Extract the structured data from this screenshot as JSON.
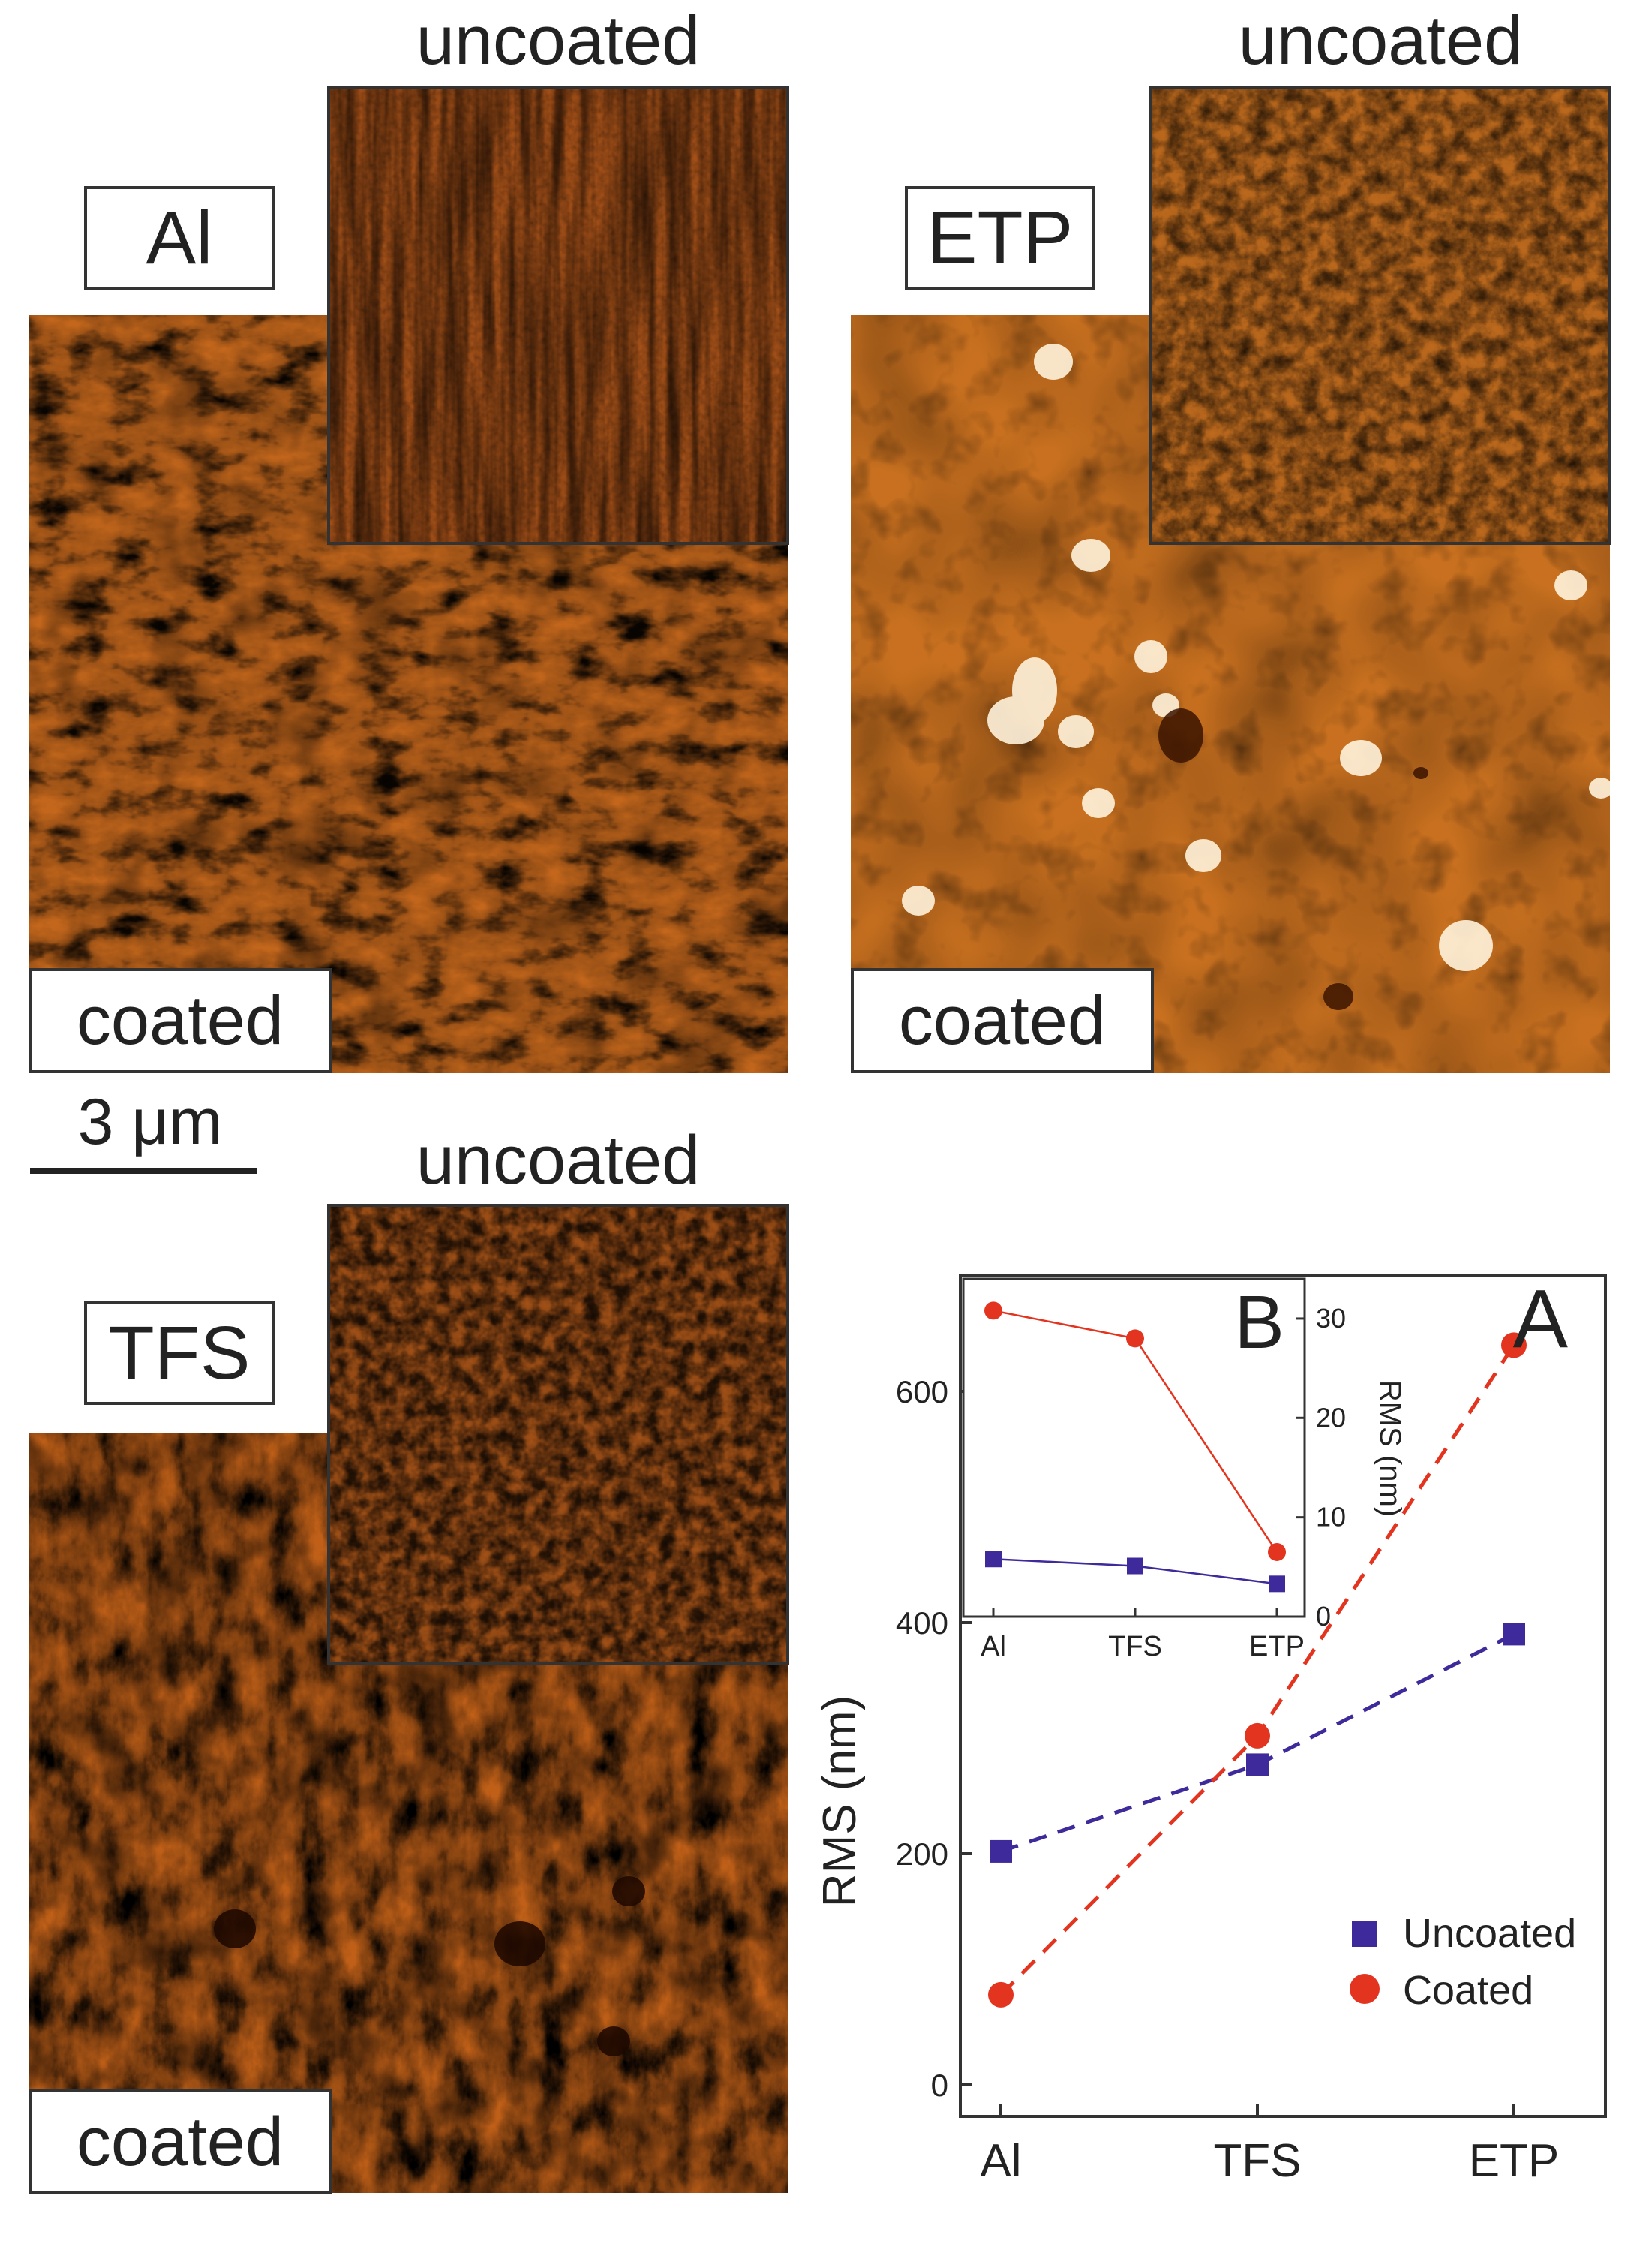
{
  "panels": {
    "al": {
      "material_label": "Al",
      "uncoated_label": "uncoated",
      "coated_label": "coated",
      "scale_bar_label": "3 μm"
    },
    "etp": {
      "material_label": "ETP",
      "uncoated_label": "uncoated",
      "coated_label": "coated"
    },
    "tfs": {
      "material_label": "TFS",
      "uncoated_label": "uncoated",
      "coated_label": "coated"
    }
  },
  "colors": {
    "afm_dark": "#5a2304",
    "afm_mid": "#c4671c",
    "afm_light": "#f7d3a0",
    "uncoated": "#3f2a9b",
    "coated": "#e3341f"
  },
  "chart_data": [
    {
      "panel_label": "A",
      "type": "line",
      "categories": [
        "Al",
        "TFS",
        "ETP"
      ],
      "ylabel": "RMS (nm)",
      "ylim": [
        0,
        700
      ],
      "yticks": [
        0,
        200,
        400,
        600
      ],
      "legend_position": "bottom-right",
      "series": [
        {
          "name": "Uncoated",
          "marker": "square",
          "values": [
            202,
            277,
            390
          ]
        },
        {
          "name": "Coated",
          "marker": "circle",
          "values": [
            78,
            302,
            640
          ]
        }
      ]
    },
    {
      "panel_label": "B",
      "type": "line",
      "categories": [
        "Al",
        "TFS",
        "ETP"
      ],
      "ylabel": "RMS (nm)",
      "ylim": [
        0,
        34
      ],
      "yticks": [
        0,
        10,
        20,
        30
      ],
      "series": [
        {
          "marker": "square",
          "values": [
            5.8,
            5.1,
            3.3
          ]
        },
        {
          "marker": "circle",
          "values": [
            30.8,
            28.0,
            6.5
          ]
        }
      ]
    }
  ]
}
